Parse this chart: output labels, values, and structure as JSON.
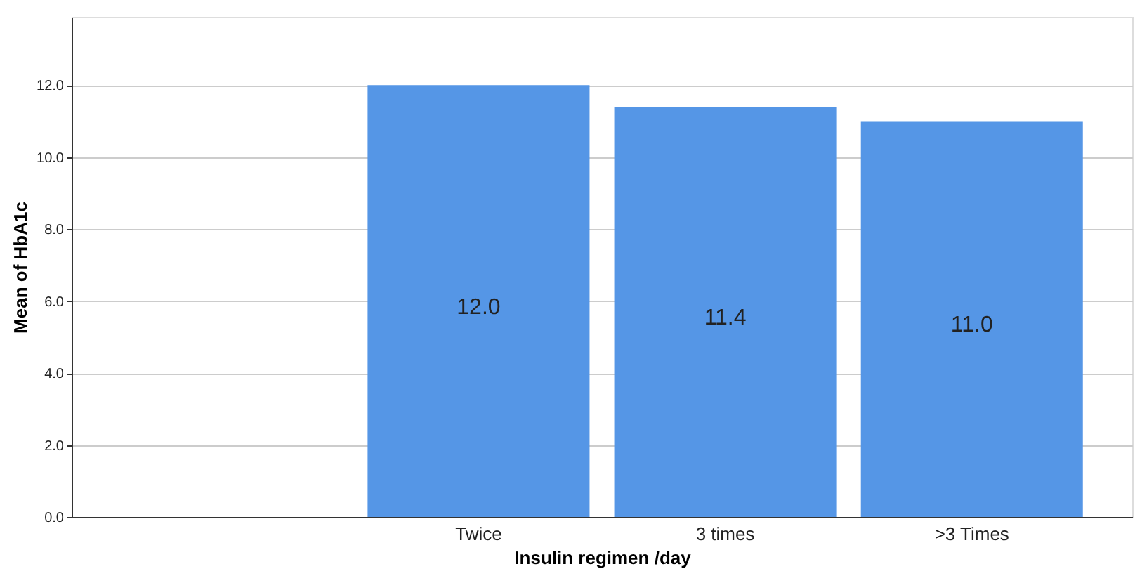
{
  "chart_data": {
    "type": "bar",
    "xlabel": "Insulin regimen /day",
    "ylabel": "Mean of HbA1c",
    "categories": [
      null,
      "Twice",
      "3 times",
      ">3 Times"
    ],
    "values": [
      null,
      12.0,
      11.4,
      11.0
    ],
    "value_labels": [
      null,
      "12.0",
      "11.4",
      "11.0"
    ],
    "color": "#5596e6",
    "ylim": [
      0,
      13.9
    ],
    "yticks": [
      {
        "value": 0,
        "label": "0.0"
      },
      {
        "value": 2,
        "label": "2.0"
      },
      {
        "value": 4,
        "label": "4.0"
      },
      {
        "value": 6,
        "label": "6.0"
      },
      {
        "value": 8,
        "label": "8.0"
      },
      {
        "value": 10,
        "label": "10.0"
      },
      {
        "value": 12,
        "label": "12.0"
      }
    ],
    "grid": "y"
  }
}
